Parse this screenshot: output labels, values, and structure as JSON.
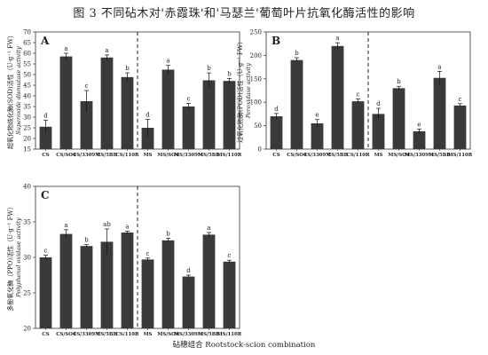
{
  "figure": {
    "title": "图 3 不同砧木对'赤霞珠'和'马瑟兰'葡萄叶片抗氧化酶活性的影响",
    "xlabel": "砧穗组合 Rootstock-scion combination"
  },
  "colors": {
    "bar_fill": "#3a3a3a",
    "axis": "#333333",
    "divider": "#222222"
  },
  "chart_data": [
    {
      "type": "bar",
      "panel": "A",
      "ylabel_cn": "超氧化物歧化酶(SOD)活性（U·g⁻¹ FW）",
      "ylabel_en": "Superoxide dismutase activity",
      "ylim": [
        15,
        70
      ],
      "yticks": [
        15,
        20,
        25,
        30,
        35,
        40,
        45,
        50,
        55,
        60,
        65,
        70
      ],
      "categories": [
        "CS",
        "CS/SO4",
        "CS/3309M",
        "CS/5BB",
        "CS/110R",
        "MS",
        "MS/SO4",
        "MS/3309M",
        "MS/5BB",
        "MS/110R"
      ],
      "values": [
        25.5,
        58.5,
        37.5,
        58.0,
        48.8,
        25.0,
        52.3,
        35.0,
        47.3,
        47.0
      ],
      "errors": [
        3.0,
        1.5,
        5.0,
        1.2,
        2.0,
        4.0,
        2.0,
        1.5,
        3.5,
        1.2
      ],
      "significance": [
        "d",
        "a",
        "c",
        "a",
        "b",
        "d",
        "a",
        "c",
        "b",
        "b"
      ],
      "divider_after_index": 4
    },
    {
      "type": "bar",
      "panel": "B",
      "ylabel_cn": "过氧化物酶(POD)活性（U·g⁻¹ FW）",
      "ylabel_en": "Peroxidase activity",
      "ylim": [
        0,
        250
      ],
      "yticks": [
        0,
        50,
        100,
        150,
        200,
        250
      ],
      "categories": [
        "CS",
        "CS/SO4",
        "CS/3309M",
        "CS/5BB",
        "CS/110R",
        "MS",
        "MS/SO4",
        "MS/3309M",
        "MS/5BB",
        "MS/110R"
      ],
      "values": [
        70,
        190,
        55,
        220,
        102,
        75,
        130,
        38,
        152,
        93
      ],
      "errors": [
        6,
        5,
        8,
        7,
        5,
        12,
        4,
        5,
        14,
        4
      ],
      "significance": [
        "d",
        "b",
        "e",
        "a",
        "c",
        "d",
        "b",
        "e",
        "a",
        "c"
      ],
      "divider_after_index": 4
    },
    {
      "type": "bar",
      "panel": "C",
      "ylabel_cn": "多酚氧化酶（PPO)活性（U·g⁻¹ FW）",
      "ylabel_en": "Polyphenol oxidase activity",
      "ylim": [
        20,
        40
      ],
      "yticks": [
        20,
        25,
        30,
        35,
        40
      ],
      "categories": [
        "CS",
        "CS/SO4",
        "CS/3309M",
        "CS/5BB",
        "CS/110R",
        "MS",
        "MS/SO4",
        "MS/3309M",
        "MS/5BB",
        "MS/110R"
      ],
      "values": [
        30.0,
        33.3,
        31.6,
        32.2,
        33.5,
        29.7,
        32.4,
        27.3,
        33.2,
        29.4
      ],
      "errors": [
        0.3,
        0.6,
        0.2,
        1.8,
        0.2,
        0.2,
        0.3,
        0.2,
        0.3,
        0.2
      ],
      "significance": [
        "c",
        "a",
        "b",
        "ab",
        "a",
        "c",
        "b",
        "d",
        "a",
        "c"
      ],
      "divider_after_index": 4
    }
  ]
}
